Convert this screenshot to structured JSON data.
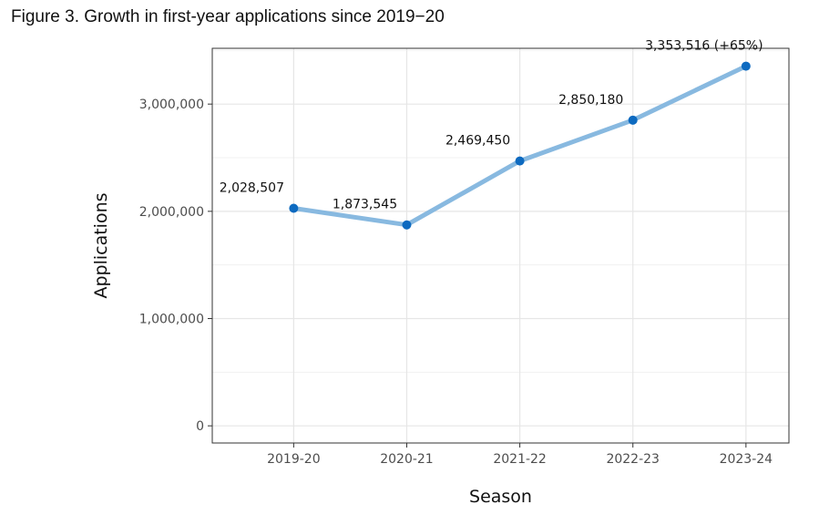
{
  "figure": {
    "title": "Figure 3. Growth in first-year applications since 2019−20"
  },
  "chart_data": {
    "type": "line",
    "title": "Figure 3. Growth in first-year applications since 2019−20",
    "xlabel": "Season",
    "ylabel": "Applications",
    "categories": [
      "2019-20",
      "2020-21",
      "2021-22",
      "2022-23",
      "2023-24"
    ],
    "series": [
      {
        "values": [
          2028507,
          1873545,
          2469450,
          2850180,
          3353516
        ],
        "line_color": "#88b9e0",
        "point_color": "#0d6ac0"
      }
    ],
    "data_labels": [
      "2,028,507",
      "1,873,545",
      "2,469,450",
      "2,850,180",
      "3,353,516 (+65%)"
    ],
    "y_ticks": [
      0,
      1000000,
      2000000,
      3000000
    ],
    "y_tick_labels": [
      "0",
      "1,000,000",
      "2,000,000",
      "3,000,000"
    ],
    "ylim": [
      -160000,
      3520000
    ],
    "grid": true,
    "legend": "none"
  }
}
